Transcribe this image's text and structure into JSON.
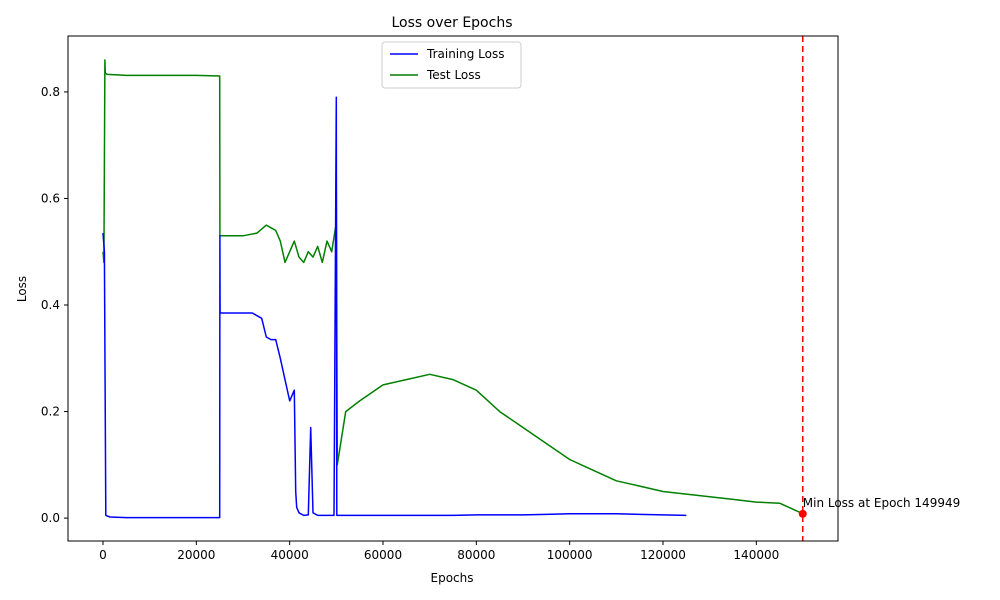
{
  "chart_data": {
    "type": "line",
    "title": "Loss over Epochs",
    "xlabel": "Epochs",
    "ylabel": "Loss",
    "xlim": [
      -7500,
      157500
    ],
    "ylim": [
      -0.043,
      0.905
    ],
    "x_ticks": [
      0,
      20000,
      40000,
      60000,
      80000,
      100000,
      120000,
      140000
    ],
    "y_ticks": [
      0.0,
      0.2,
      0.4,
      0.6,
      0.8
    ],
    "grid": false,
    "legend_position": "upper center",
    "series": [
      {
        "name": "Training Loss",
        "color": "#0000ff",
        "x": [
          0,
          300,
          600,
          1500,
          5000,
          10000,
          15000,
          20000,
          25000,
          25050,
          25100,
          26000,
          28000,
          30000,
          32000,
          34000,
          35000,
          36000,
          37000,
          38000,
          39000,
          40000,
          41000,
          41300,
          41500,
          42000,
          43000,
          44000,
          44500,
          45000,
          46000,
          48000,
          49500,
          50000,
          50100,
          50300,
          52000,
          55000,
          60000,
          65000,
          70000,
          75000,
          80000,
          85000,
          90000,
          95000,
          100000,
          105000,
          110000,
          115000,
          120000,
          125000
        ],
        "values": [
          0.535,
          0.5,
          0.005,
          0.002,
          0.001,
          0.001,
          0.001,
          0.001,
          0.001,
          0.53,
          0.385,
          0.385,
          0.385,
          0.385,
          0.385,
          0.375,
          0.34,
          0.335,
          0.335,
          0.3,
          0.26,
          0.22,
          0.24,
          0.05,
          0.02,
          0.01,
          0.005,
          0.006,
          0.17,
          0.01,
          0.005,
          0.005,
          0.005,
          0.79,
          0.005,
          0.005,
          0.005,
          0.005,
          0.005,
          0.005,
          0.005,
          0.005,
          0.006,
          0.006,
          0.006,
          0.007,
          0.008,
          0.008,
          0.008,
          0.007,
          0.006,
          0.005
        ]
      },
      {
        "name": "Test Loss",
        "color": "#008000",
        "x": [
          0,
          200,
          400,
          500,
          1000,
          5000,
          10000,
          15000,
          20000,
          25000,
          25050,
          25200,
          27000,
          30000,
          33000,
          35000,
          36000,
          37000,
          38000,
          39000,
          40000,
          41000,
          42000,
          43000,
          44000,
          45000,
          46000,
          47000,
          48000,
          49000,
          49900,
          50000,
          50200,
          52000,
          55000,
          60000,
          65000,
          70000,
          75000,
          80000,
          85000,
          90000,
          95000,
          100000,
          105000,
          110000,
          115000,
          120000,
          125000,
          130000,
          135000,
          140000,
          145000,
          150000
        ],
        "values": [
          0.5,
          0.48,
          0.86,
          0.835,
          0.833,
          0.831,
          0.831,
          0.831,
          0.831,
          0.83,
          0.53,
          0.53,
          0.53,
          0.53,
          0.535,
          0.55,
          0.545,
          0.54,
          0.52,
          0.48,
          0.5,
          0.52,
          0.49,
          0.48,
          0.5,
          0.49,
          0.51,
          0.48,
          0.52,
          0.5,
          0.55,
          0.62,
          0.1,
          0.2,
          0.22,
          0.25,
          0.26,
          0.27,
          0.26,
          0.24,
          0.2,
          0.17,
          0.14,
          0.11,
          0.09,
          0.07,
          0.06,
          0.05,
          0.045,
          0.04,
          0.035,
          0.03,
          0.028,
          0.008
        ]
      }
    ],
    "annotation": {
      "text": "Min Loss at Epoch 149949",
      "x": 149949,
      "y": 0.008,
      "vline_color": "#ff0000",
      "marker_color": "#ff0000"
    }
  }
}
